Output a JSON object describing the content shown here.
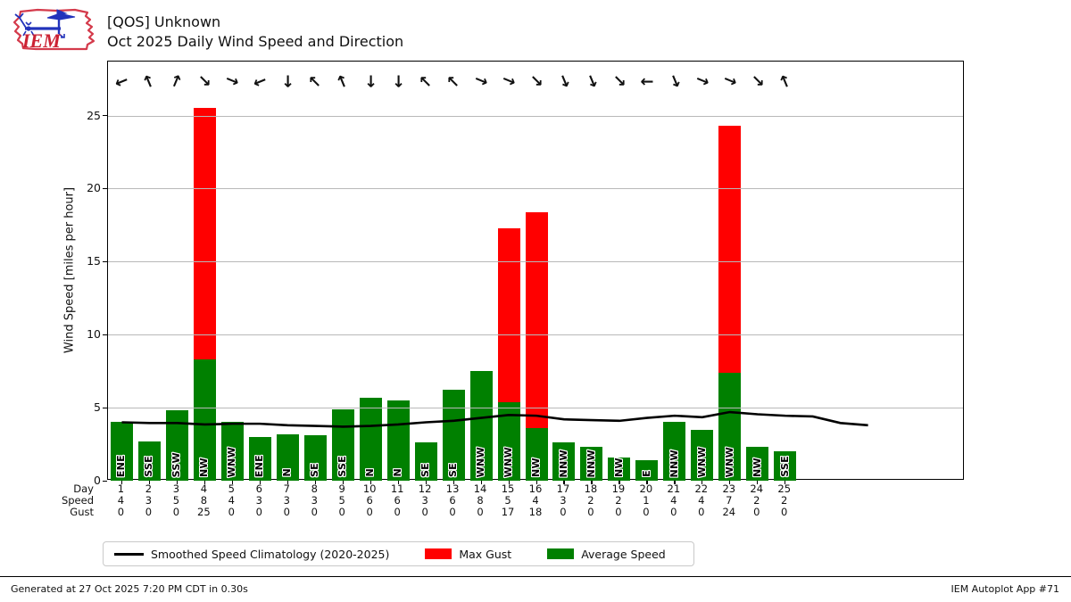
{
  "header": {
    "title_line1": "[QOS] Unknown",
    "title_line2": "Oct 2025 Daily Wind Speed and Direction",
    "logo_text": "IEM"
  },
  "footer": {
    "generated": "Generated at 27 Oct 2025 7:20 PM CDT in 0.30s",
    "app": "IEM Autoplot App #71"
  },
  "icons": {
    "wind_arrow_glyph": "→"
  },
  "colors": {
    "avg_speed": "#008000",
    "max_gust": "#ff0000",
    "climatology": "#000000",
    "grid": "#b9b9b9",
    "logo_outline": "#d43a4b",
    "logo_vane": "#2233bb"
  },
  "legend": [
    {
      "label": "Smoothed Speed Climatology (2020-2025)",
      "type": "line",
      "color": "#000000"
    },
    {
      "label": "Max Gust",
      "type": "patch",
      "color": "#ff0000"
    },
    {
      "label": "Average Speed",
      "type": "patch",
      "color": "#008000"
    }
  ],
  "chart_data": {
    "type": "bar",
    "title": "[QOS] Unknown — Oct 2025 Daily Wind Speed and Direction",
    "ylabel": "Wind Speed [miles per hour]",
    "yticks": [
      0,
      5,
      10,
      15,
      20,
      25
    ],
    "ylim": [
      0,
      28.7
    ],
    "xlim": [
      0.5,
      31.5
    ],
    "grid": true,
    "legend_position": "bottom",
    "x_row_labels": [
      "Day",
      "Speed",
      "Gust"
    ],
    "days": [
      1,
      2,
      3,
      4,
      5,
      6,
      7,
      8,
      9,
      10,
      11,
      12,
      13,
      14,
      15,
      16,
      17,
      18,
      19,
      20,
      21,
      22,
      23,
      24,
      25
    ],
    "speed_row": [
      4,
      3,
      5,
      8,
      4,
      3,
      3,
      3,
      5,
      6,
      6,
      3,
      6,
      8,
      5,
      4,
      3,
      2,
      2,
      1,
      4,
      4,
      7,
      2,
      2
    ],
    "gust_row": [
      0,
      0,
      0,
      25,
      0,
      0,
      0,
      0,
      0,
      0,
      0,
      0,
      0,
      0,
      17,
      18,
      0,
      0,
      0,
      0,
      0,
      0,
      24,
      0,
      0
    ],
    "series": [
      {
        "name": "Average Speed",
        "values": [
          4.0,
          2.7,
          4.8,
          8.3,
          4.0,
          3.0,
          3.2,
          3.1,
          4.9,
          5.7,
          5.5,
          2.6,
          6.2,
          7.5,
          5.4,
          3.6,
          2.6,
          2.3,
          1.6,
          1.4,
          4.0,
          3.5,
          7.4,
          2.3,
          2.0
        ]
      },
      {
        "name": "Max Gust",
        "values": [
          0,
          0,
          0,
          25.5,
          0,
          0,
          0,
          0,
          0,
          0,
          0,
          0,
          0,
          0,
          17.3,
          18.4,
          0,
          0,
          0,
          0,
          0,
          0,
          24.3,
          0,
          0
        ]
      }
    ],
    "directions": [
      "ENE",
      "SSE",
      "SSW",
      "NW",
      "WNW",
      "ENE",
      "N",
      "SE",
      "SSE",
      "N",
      "N",
      "SE",
      "SE",
      "WNW",
      "WNW",
      "NW",
      "NNW",
      "NNW",
      "NW",
      "E",
      "NNW",
      "WNW",
      "WNW",
      "NW",
      "SSE"
    ],
    "direction_azimuths": [
      67.5,
      157.5,
      202.5,
      315,
      292.5,
      67.5,
      0,
      135,
      157.5,
      0,
      0,
      135,
      135,
      292.5,
      292.5,
      315,
      337.5,
      337.5,
      315,
      90,
      337.5,
      292.5,
      292.5,
      315,
      157.5
    ],
    "climatology": {
      "name": "Smoothed Speed Climatology (2020-2025)",
      "x": [
        1,
        2,
        3,
        4,
        5,
        6,
        7,
        8,
        9,
        10,
        11,
        12,
        13,
        14,
        15,
        16,
        17,
        18,
        19,
        20,
        21,
        22,
        23,
        24,
        25,
        26,
        27,
        28
      ],
      "values": [
        4.0,
        3.95,
        3.95,
        3.85,
        3.9,
        3.9,
        3.8,
        3.75,
        3.7,
        3.75,
        3.85,
        4.0,
        4.1,
        4.3,
        4.5,
        4.45,
        4.2,
        4.15,
        4.1,
        4.3,
        4.45,
        4.35,
        4.7,
        4.55,
        4.45,
        4.4,
        3.95,
        3.8
      ]
    }
  }
}
